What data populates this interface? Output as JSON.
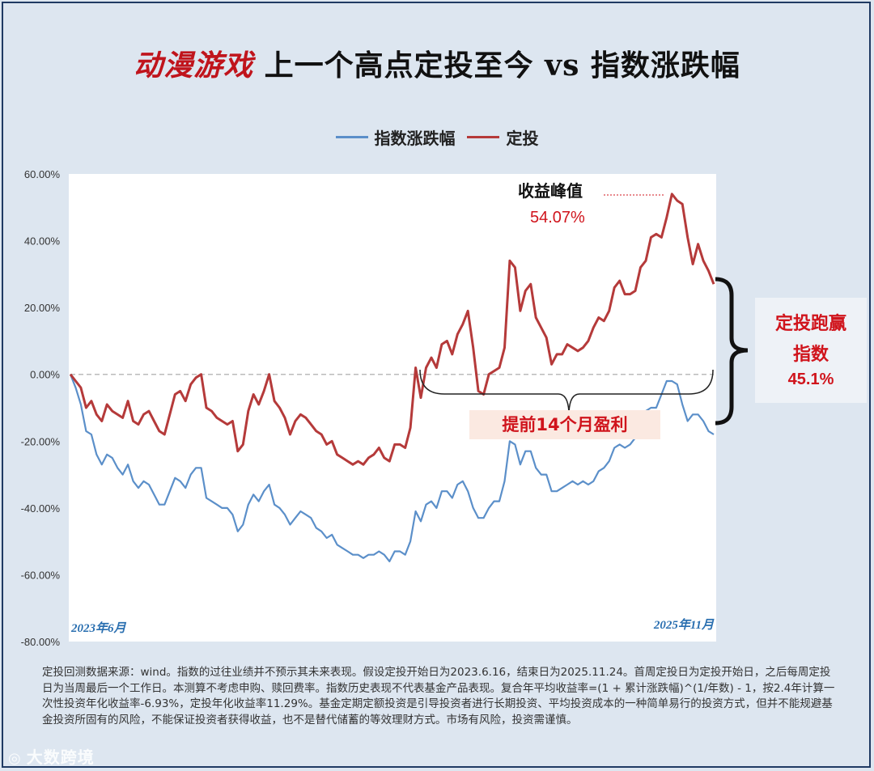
{
  "title": {
    "highlight": "动漫游戏",
    "rest": " 上一个高点定投至今 vs 指数涨跌幅"
  },
  "legend": [
    {
      "name": "指数涨跌幅",
      "color": "#5b8fc9"
    },
    {
      "name": "定投",
      "color": "#b53a3a"
    }
  ],
  "annotations": {
    "peak_label": "收益峰值",
    "peak_value": "54.07%",
    "early_profit": "提前14个月盈利",
    "win_line1": "定投跑赢",
    "win_line2": "指数",
    "win_value": "45.1%",
    "start_date": "2023年6月",
    "end_date": "2025年11月"
  },
  "footnote": "定投回测数据来源：wind。指数的过往业绩并不预示其未来表现。假设定投开始日为2023.6.16，结束日为2025.11.24。首周定投日为定投开始日，之后每周定投日为当周最后一个工作日。本测算不考虑申购、赎回费率。指数历史表现不代表基金产品表现。复合年平均收益率=(1 + 累计涨跌幅)^(1/年数) - 1，按2.4年计算一次性投资年化收益率-6.93%，定投年化收益率11.29%。基金定期定额投资是引导投资者进行长期投资、平均投资成本的一种简单易行的投资方式，但并不能规避基金投资所固有的风险，不能保证投资者获得收益，也不是替代储蓄的等效理财方式。市场有风险，投资需谨慎。",
  "watermark": "大数跨境",
  "chart_data": {
    "type": "line",
    "title": "动漫游戏 上一个高点定投至今 vs 指数涨跌幅",
    "xlabel": "",
    "ylabel": "",
    "ylim": [
      -80,
      60
    ],
    "yticks": [
      60,
      40,
      20,
      0,
      -20,
      -40,
      -60,
      -80
    ],
    "ytick_labels": [
      "60.00%",
      "40.00%",
      "20.00%",
      "0.00%",
      "-20.00%",
      "-40.00%",
      "-60.00%",
      "-80.00%"
    ],
    "x_start_label": "2023年6月",
    "x_end_label": "2025年11月",
    "n_points": 124,
    "series": [
      {
        "name": "指数涨跌幅",
        "color": "#5b8fc9",
        "values": [
          0,
          -4,
          -9,
          -17,
          -18,
          -24,
          -27,
          -24,
          -25,
          -28,
          -30,
          -27,
          -32,
          -34,
          -32,
          -33,
          -36,
          -39,
          -39,
          -35,
          -31,
          -32,
          -34,
          -30,
          -28,
          -28,
          -37,
          -38,
          -39,
          -40,
          -40,
          -42,
          -47,
          -45,
          -39,
          -36,
          -38,
          -35,
          -33,
          -39,
          -40,
          -42,
          -45,
          -43,
          -41,
          -42,
          -43,
          -46,
          -47,
          -49,
          -48,
          -51,
          -52,
          -53,
          -54,
          -54,
          -55,
          -54,
          -54,
          -53,
          -54,
          -56,
          -53,
          -53,
          -54,
          -50,
          -41,
          -44,
          -39,
          -38,
          -40,
          -35,
          -35,
          -37,
          -33,
          -32,
          -35,
          -40,
          -43,
          -43,
          -40,
          -38,
          -38,
          -32,
          -20,
          -21,
          -27,
          -23,
          -23,
          -28,
          -30,
          -30,
          -35,
          -35,
          -34,
          -33,
          -32,
          -33,
          -32,
          -33,
          -32,
          -29,
          -28,
          -26,
          -22,
          -21,
          -22,
          -21,
          -19,
          -15,
          -11,
          -10,
          -10,
          -6,
          -2,
          -2,
          -3,
          -9,
          -14,
          -12,
          -12,
          -14,
          -17,
          -18
        ]
      },
      {
        "name": "定投",
        "color": "#b53a3a",
        "values": [
          0,
          -2,
          -4,
          -10,
          -8,
          -12,
          -14,
          -9,
          -11,
          -12,
          -13,
          -8,
          -14,
          -15,
          -12,
          -11,
          -14,
          -17,
          -18,
          -12,
          -6,
          -5,
          -8,
          -3,
          -1,
          0,
          -10,
          -11,
          -13,
          -14,
          -15,
          -14,
          -23,
          -21,
          -11,
          -6,
          -9,
          -5,
          0,
          -8,
          -10,
          -13,
          -18,
          -14,
          -12,
          -13,
          -15,
          -17,
          -18,
          -21,
          -20,
          -24,
          -25,
          -26,
          -27,
          -26,
          -27,
          -25,
          -24,
          -22,
          -25,
          -26,
          -21,
          -21,
          -22,
          -16,
          2,
          -7,
          2,
          5,
          2,
          9,
          10,
          6,
          12,
          15,
          19,
          8,
          -5,
          -6,
          0,
          1,
          2,
          8,
          34,
          32,
          19,
          25,
          27,
          17,
          14,
          11,
          3,
          6,
          6,
          9,
          8,
          7,
          8,
          10,
          14,
          17,
          16,
          19,
          26,
          28,
          24,
          24,
          25,
          32,
          34,
          41,
          42,
          41,
          47,
          54,
          52,
          51,
          41,
          33,
          39,
          34,
          31,
          27
        ]
      }
    ]
  }
}
